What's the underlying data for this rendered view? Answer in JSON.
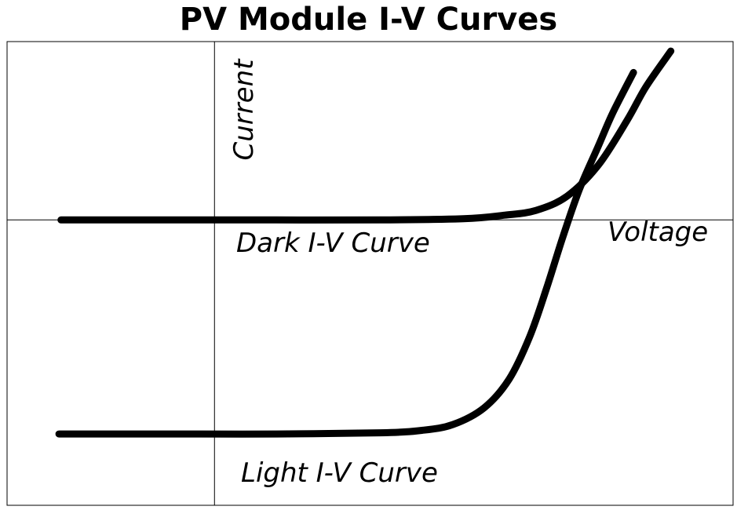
{
  "chart_data": {
    "type": "line",
    "title": "PV Module I-V Curves",
    "xlabel": "Voltage",
    "ylabel": "Current",
    "grid": false,
    "legend": "none",
    "xlim": [
      -1.0,
      2.5
    ],
    "ylim": [
      -1.2,
      0.75
    ],
    "series": [
      {
        "name": "Dark I-V Curve",
        "color": "#000000",
        "x": [
          -0.74,
          -0.2,
          0.3,
          0.8,
          1.2,
          1.4,
          1.55,
          1.7,
          1.85,
          1.99,
          2.08,
          2.2
        ],
        "y": [
          0.0,
          0.0,
          0.0,
          0.0,
          0.005,
          0.02,
          0.04,
          0.1,
          0.23,
          0.42,
          0.56,
          0.71
        ]
      },
      {
        "name": "Light I-V Curve",
        "color": "#000000",
        "x": [
          -0.75,
          -0.2,
          0.3,
          0.8,
          1.0,
          1.15,
          1.3,
          1.42,
          1.52,
          1.6,
          1.68,
          1.76,
          1.85,
          1.92,
          2.02
        ],
        "y": [
          -0.9,
          -0.9,
          -0.9,
          -0.895,
          -0.885,
          -0.86,
          -0.79,
          -0.67,
          -0.49,
          -0.29,
          -0.07,
          0.13,
          0.31,
          0.45,
          0.62
        ]
      }
    ],
    "annotations": [
      {
        "text": "Dark I-V Curve"
      },
      {
        "text": "Light I-V Curve"
      }
    ]
  }
}
